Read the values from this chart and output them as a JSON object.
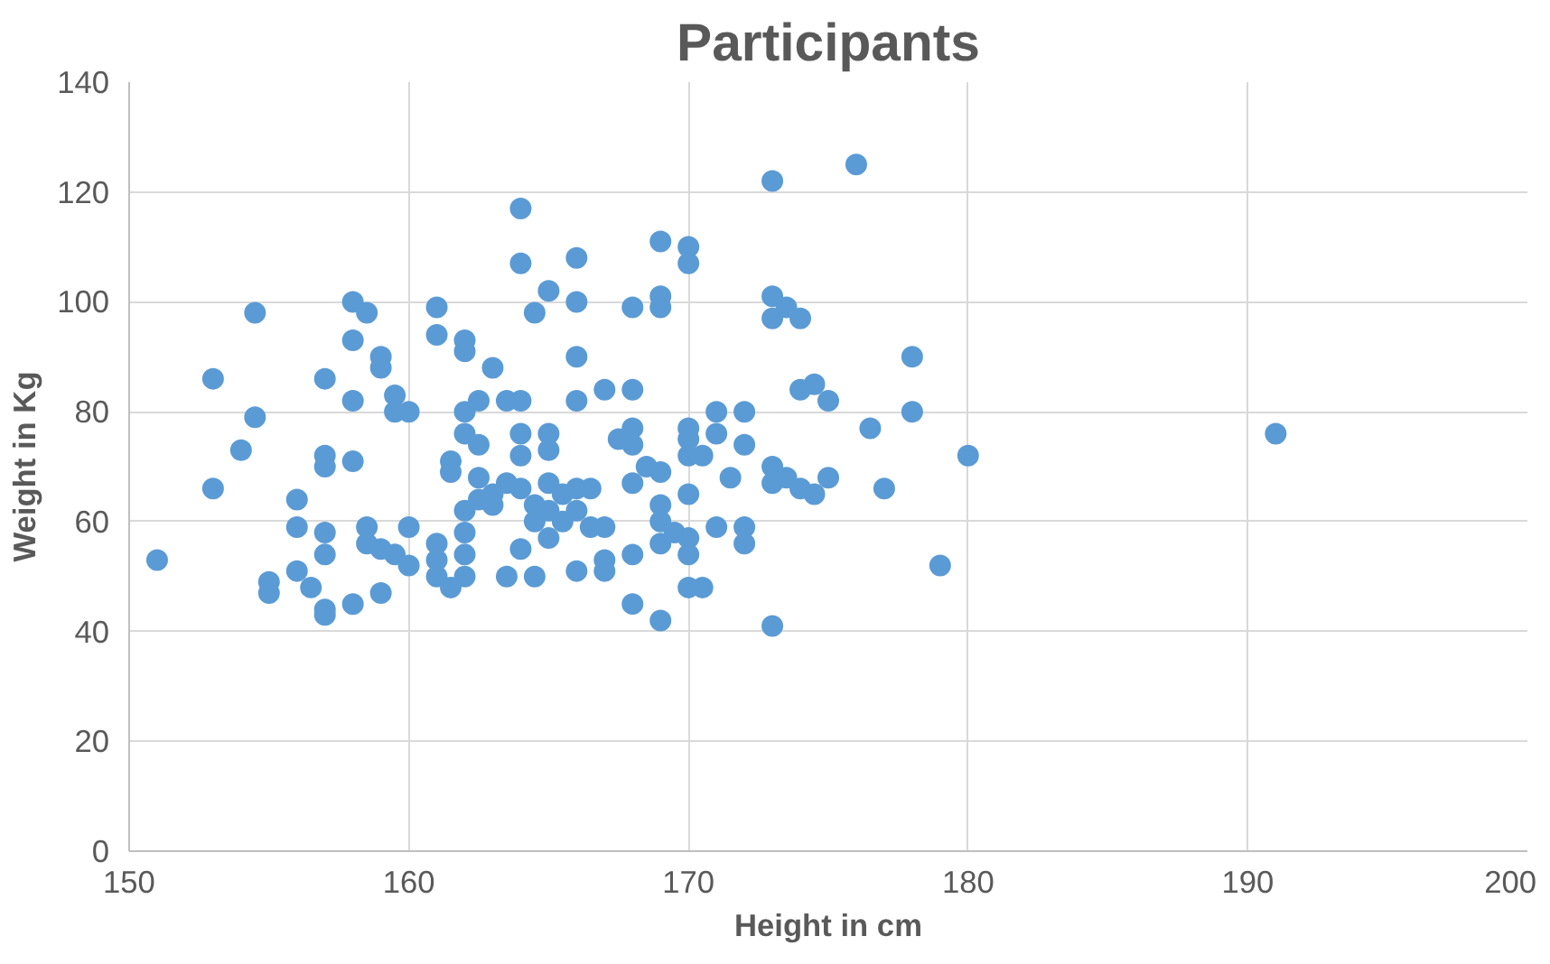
{
  "chart_data": {
    "type": "scatter",
    "title": "Participants",
    "xlabel": "Height in cm",
    "ylabel": "Weight in Kg",
    "xlim": [
      150,
      200
    ],
    "xticks": [
      150,
      160,
      170,
      180,
      190,
      200
    ],
    "ylim": [
      0,
      140
    ],
    "yticks": [
      0,
      20,
      40,
      60,
      80,
      100,
      120,
      140
    ],
    "grid": true,
    "marker": "circle",
    "series": [
      {
        "color": "#5b9bd5",
        "x": [
          151,
          153,
          153,
          154,
          154.5,
          154.5,
          155,
          155,
          156,
          156,
          156,
          156.5,
          157,
          157,
          157,
          157,
          157,
          157,
          157,
          158,
          158,
          158,
          158,
          158,
          158.5,
          158.5,
          158.5,
          159,
          159,
          159,
          159,
          159.5,
          159.5,
          159.5,
          160,
          160,
          160,
          161,
          161,
          161,
          161,
          161,
          161.5,
          161.5,
          161.5,
          162,
          162,
          162,
          162,
          162,
          162,
          162,
          162,
          162.5,
          162.5,
          162.5,
          162.5,
          163,
          163,
          163,
          163.5,
          163.5,
          163.5,
          164,
          164,
          164,
          164,
          164,
          164,
          164,
          164.5,
          164.5,
          164.5,
          164.5,
          165,
          165,
          165,
          165,
          165,
          165,
          165.5,
          165.5,
          166,
          166,
          166,
          166,
          166,
          166,
          166,
          166.5,
          166.5,
          167,
          167,
          167,
          167,
          167.5,
          168,
          168,
          168,
          168,
          168,
          168,
          168,
          168.5,
          169,
          169,
          169,
          169,
          169,
          169,
          169,
          169,
          169.5,
          170,
          170,
          170,
          170,
          170,
          170,
          170,
          170,
          170,
          170.5,
          170.5,
          171,
          171,
          171,
          171.5,
          172,
          172,
          172,
          172,
          173,
          173,
          173,
          173,
          173,
          173,
          173.5,
          173.5,
          174,
          174,
          174,
          174.5,
          174.5,
          175,
          175,
          176,
          176.5,
          177,
          178,
          178,
          179,
          180,
          191
        ],
        "values": [
          53,
          86,
          66,
          73,
          98,
          79,
          49,
          47,
          64,
          59,
          51,
          48,
          86,
          72,
          70,
          58,
          54,
          44,
          43,
          100,
          93,
          82,
          71,
          45,
          98,
          59,
          56,
          90,
          88,
          55,
          47,
          83,
          80,
          54,
          80,
          59,
          52,
          99,
          94,
          56,
          53,
          50,
          71,
          69,
          48,
          93,
          91,
          80,
          76,
          62,
          58,
          54,
          50,
          82,
          74,
          68,
          64,
          88,
          65,
          63,
          82,
          67,
          50,
          117,
          107,
          82,
          76,
          72,
          66,
          55,
          98,
          63,
          60,
          50,
          102,
          76,
          73,
          67,
          62,
          57,
          65,
          60,
          108,
          100,
          90,
          82,
          66,
          62,
          51,
          66,
          59,
          84,
          59,
          53,
          51,
          75,
          99,
          84,
          77,
          74,
          67,
          54,
          45,
          70,
          111,
          101,
          99,
          69,
          63,
          60,
          56,
          42,
          58,
          110,
          107,
          77,
          75,
          72,
          65,
          57,
          54,
          48,
          72,
          48,
          80,
          76,
          59,
          68,
          80,
          74,
          59,
          56,
          122,
          101,
          97,
          70,
          67,
          41,
          99,
          68,
          97,
          84,
          66,
          85,
          65,
          82,
          68,
          125,
          77,
          66,
          90,
          80,
          52,
          72,
          76
        ]
      }
    ]
  }
}
